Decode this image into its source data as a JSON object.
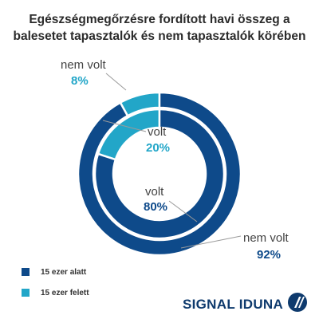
{
  "title_lines": [
    "Egészségmegőrzésre fordított havi összeg a",
    "balesetet tapasztalók és nem tapasztalók körében"
  ],
  "colors": {
    "dark": "#0e4a8a",
    "light": "#22a6c8",
    "text": "#444444"
  },
  "chart_data": {
    "type": "pie",
    "title": "Egészségmegőrzésre fordított havi összeg a balesetet tapasztalók és nem tapasztalók körében",
    "legend_position": "bottom-left",
    "categories": [
      "15 ezer alatt",
      "15 ezer felett"
    ],
    "rings": [
      {
        "ring": "outer",
        "name": "nem volt",
        "values": [
          92,
          8
        ],
        "labels": {
          "name": "nem volt",
          "dark_pct": "92%",
          "light_pct": "8%"
        }
      },
      {
        "ring": "inner",
        "name": "volt",
        "values": [
          80,
          20
        ],
        "labels": {
          "name": "volt",
          "dark_pct": "80%",
          "light_pct": "20%"
        }
      }
    ]
  },
  "legend": [
    {
      "label": "15 ezer alatt",
      "color": "#0e4a8a"
    },
    {
      "label": "15 ezer felett",
      "color": "#22a6c8"
    }
  ],
  "brand": {
    "name": "SIGNAL IDUNA",
    "logo_icon": "signal-iduna-logo-icon"
  }
}
